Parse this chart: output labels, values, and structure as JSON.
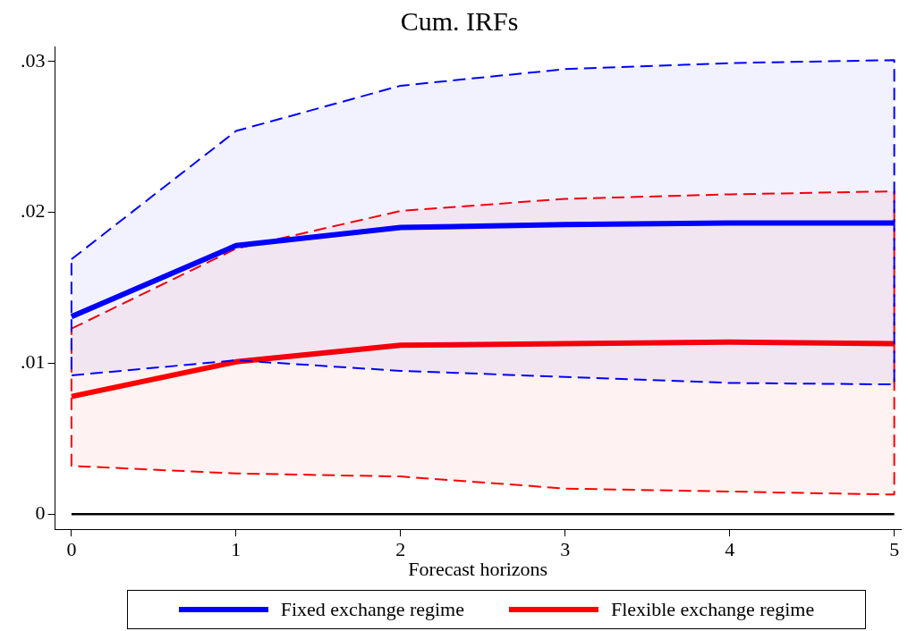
{
  "chart_data": {
    "type": "line",
    "title": "Cum. IRFs",
    "xlabel": "Forecast horizons",
    "x": [
      0,
      1,
      2,
      3,
      4,
      5
    ],
    "series": [
      {
        "name": "Fixed exchange regime",
        "color": "#0000ff",
        "values": [
          0.0131,
          0.0178,
          0.019,
          0.0192,
          0.0193,
          0.0193
        ],
        "lower": [
          0.0092,
          0.0102,
          0.0095,
          0.0091,
          0.0087,
          0.0086
        ],
        "upper": [
          0.0169,
          0.0254,
          0.0284,
          0.0295,
          0.0299,
          0.0301
        ]
      },
      {
        "name": "Flexible exchange regime",
        "color": "#ff0000",
        "values": [
          0.0078,
          0.0101,
          0.0112,
          0.0113,
          0.0114,
          0.0113
        ],
        "lower": [
          0.0032,
          0.0027,
          0.0025,
          0.0017,
          0.0015,
          0.0013
        ],
        "upper": [
          0.0123,
          0.0176,
          0.0201,
          0.0209,
          0.0212,
          0.0214
        ]
      }
    ],
    "xlim": [
      -0.1,
      5.04
    ],
    "xticks": [
      0,
      1,
      2,
      3,
      4,
      5
    ],
    "ylim": [
      -0.001,
      0.031
    ],
    "yticks": [
      {
        "value": 0,
        "label": "0"
      },
      {
        "value": 0.01,
        "label": ".01"
      },
      {
        "value": 0.02,
        "label": ".02"
      },
      {
        "value": 0.03,
        "label": ".03"
      }
    ],
    "ref_lines": [
      {
        "axis": "y",
        "value": 0,
        "color": "#000000"
      }
    ],
    "grid": false,
    "legend": "bottom",
    "marker": "none",
    "line_style": "solid"
  }
}
